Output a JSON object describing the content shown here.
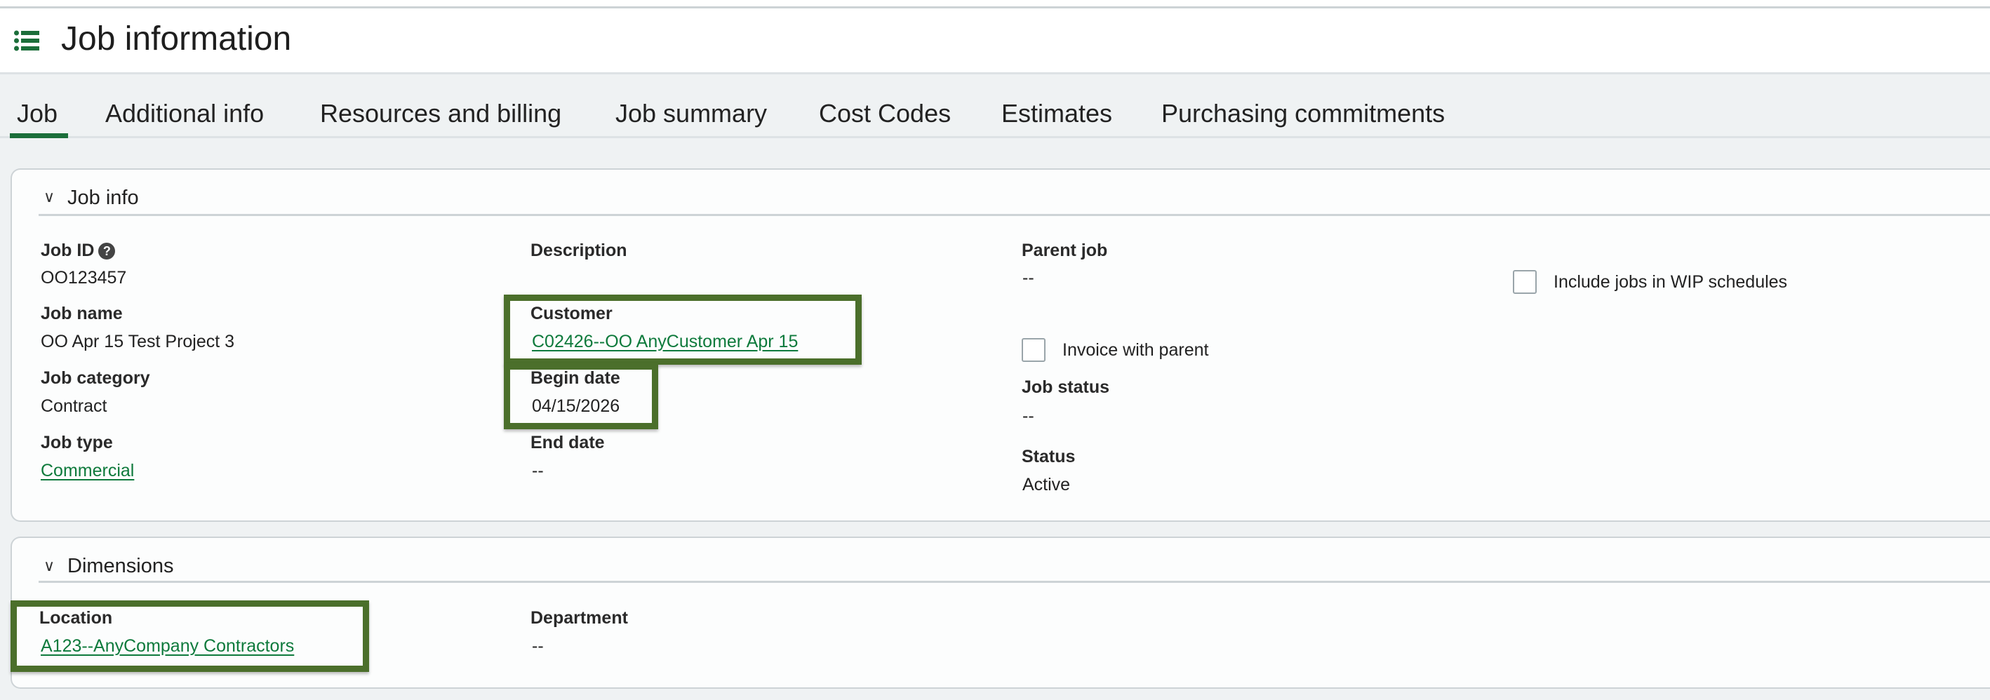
{
  "header": {
    "title": "Job information",
    "icon": "list-icon"
  },
  "tabs": [
    {
      "label": "Job",
      "active": true
    },
    {
      "label": "Additional info"
    },
    {
      "label": "Resources and billing"
    },
    {
      "label": "Job summary"
    },
    {
      "label": "Cost Codes"
    },
    {
      "label": "Estimates"
    },
    {
      "label": "Purchasing commitments"
    }
  ],
  "job_info": {
    "title": "Job info",
    "job_id": {
      "label": "Job ID",
      "value": "OO123457",
      "help_icon": "?"
    },
    "job_name": {
      "label": "Job name",
      "value": "OO Apr 15 Test Project 3"
    },
    "job_category": {
      "label": "Job category",
      "value": "Contract"
    },
    "job_type": {
      "label": "Job type",
      "value": "Commercial"
    },
    "description": {
      "label": "Description"
    },
    "customer": {
      "label": "Customer",
      "value": "C02426--OO AnyCustomer Apr 15"
    },
    "begin_date": {
      "label": "Begin date",
      "value": "04/15/2026"
    },
    "end_date": {
      "label": "End date",
      "value": "--"
    },
    "parent_job": {
      "label": "Parent job",
      "value": "--"
    },
    "invoice_with_parent": {
      "label": "Invoice with parent",
      "checked": false
    },
    "job_status": {
      "label": "Job status",
      "value": "--"
    },
    "status": {
      "label": "Status",
      "value": "Active"
    },
    "include_wip": {
      "label": "Include jobs in WIP schedules",
      "checked": false
    }
  },
  "dimensions": {
    "title": "Dimensions",
    "location": {
      "label": "Location",
      "value": "A123--AnyCompany Contractors"
    },
    "department": {
      "label": "Department",
      "value": "--"
    }
  },
  "colors": {
    "accent": "#0e7a3c",
    "highlight": "#4b6f2b"
  }
}
